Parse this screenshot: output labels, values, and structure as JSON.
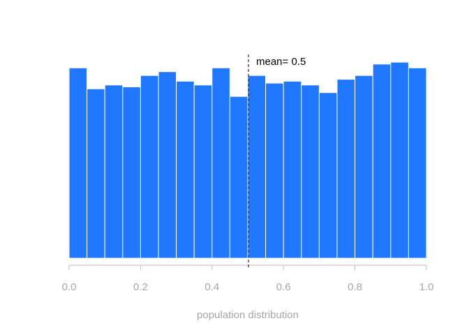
{
  "chart_data": {
    "type": "bar",
    "title": "",
    "xlabel": "population distribution",
    "ylabel": "",
    "xlim": [
      0.0,
      1.0
    ],
    "ylim": [
      0,
      1.1
    ],
    "bin_width": 0.05,
    "bin_starts": [
      0.0,
      0.05,
      0.1,
      0.15,
      0.2,
      0.25,
      0.3,
      0.35,
      0.4,
      0.45,
      0.5,
      0.55,
      0.6,
      0.65,
      0.7,
      0.75,
      0.8,
      0.85,
      0.9,
      0.95
    ],
    "values": [
      1.0,
      0.89,
      0.91,
      0.9,
      0.96,
      0.98,
      0.93,
      0.91,
      1.0,
      0.85,
      0.96,
      0.92,
      0.93,
      0.91,
      0.87,
      0.94,
      0.96,
      1.02,
      1.03,
      1.0
    ],
    "xticks": [
      0.0,
      0.2,
      0.4,
      0.6,
      0.8,
      1.0
    ],
    "xtick_labels": [
      "0.0",
      "0.2",
      "0.4",
      "0.6",
      "0.8",
      "1.0"
    ],
    "mean": 0.5,
    "mean_label": "mean= 0.5",
    "y_axis_visible": false,
    "grid": false,
    "colors": {
      "bar_fill": "#1f78ff",
      "bar_edge": "#ffffff",
      "axis": "#bfbfbf",
      "tick_label": "#a6a6a6",
      "axis_label": "#a6a6a6",
      "mean_line": "#000000",
      "annotation": "#000000"
    }
  }
}
